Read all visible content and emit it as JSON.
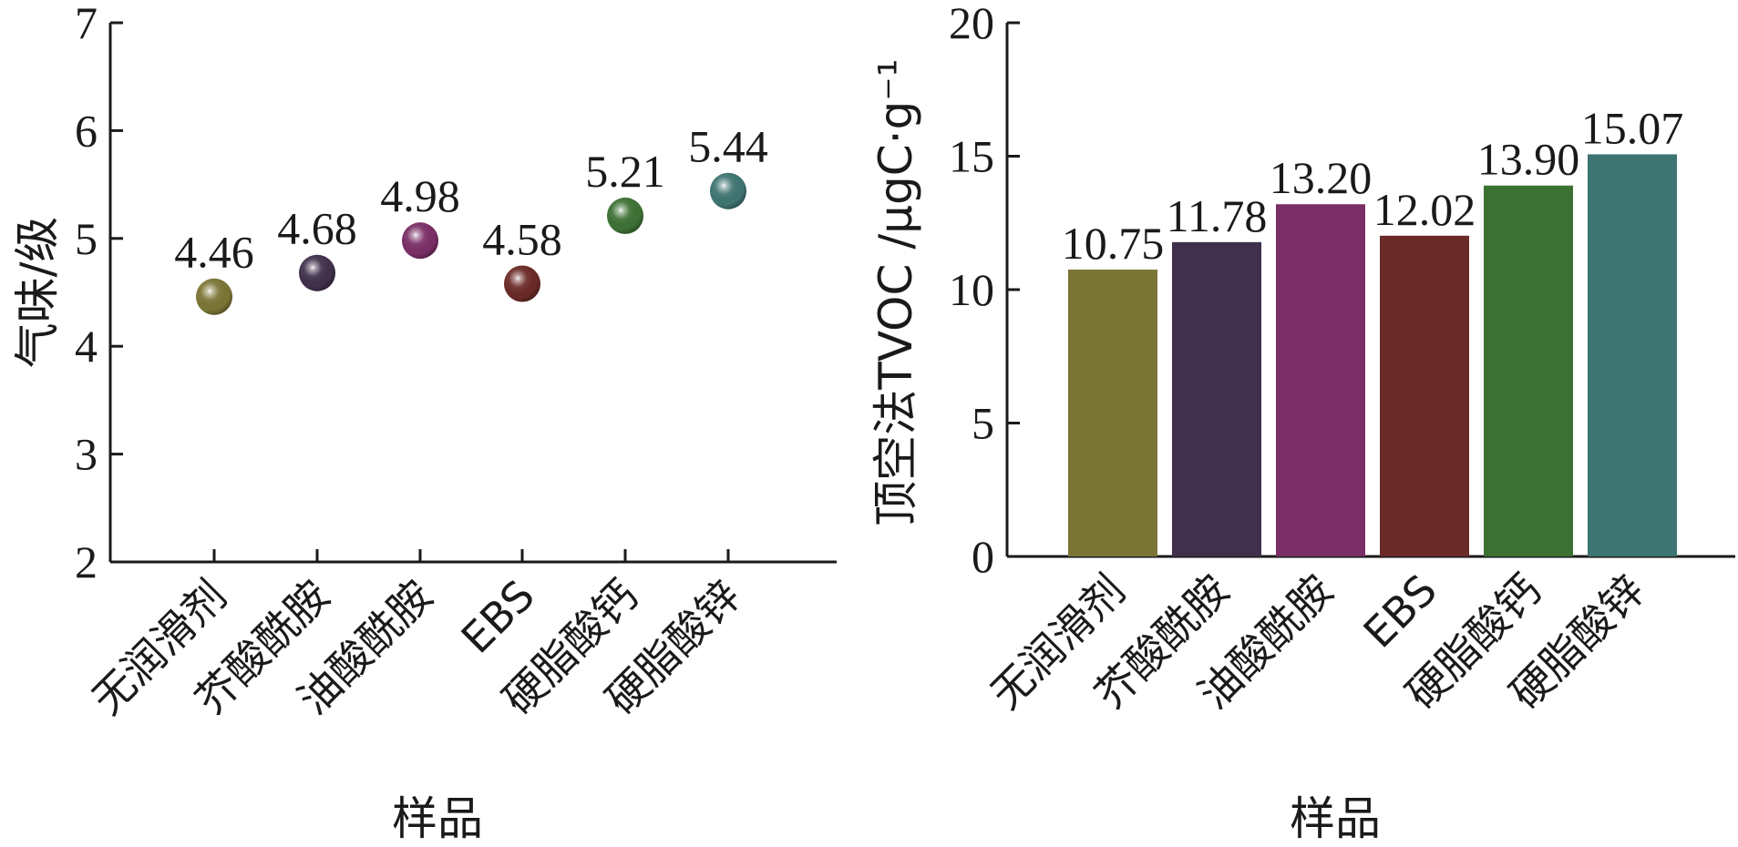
{
  "colors": {
    "axis": "#1a1a1a",
    "series": [
      "#7b7535",
      "#40304b",
      "#7a2e66",
      "#6a2a27",
      "#3d7134",
      "#3e7471"
    ]
  },
  "chart_data": [
    {
      "type": "scatter",
      "title": "",
      "xlabel": "样品",
      "ylabel": "气味/级",
      "categories": [
        "无润滑剂",
        "芥酸酰胺",
        "油酸酰胺",
        "EBS",
        "硬脂酸钙",
        "硬脂酸锌"
      ],
      "values": [
        4.46,
        4.68,
        4.98,
        4.58,
        5.21,
        5.44
      ],
      "value_labels": [
        "4.46",
        "4.68",
        "4.98",
        "4.58",
        "5.21",
        "5.44"
      ],
      "ylim": [
        2,
        7
      ],
      "yticks": [
        "2",
        "3",
        "4",
        "5",
        "6",
        "7"
      ],
      "grid": false,
      "marker": "sphere"
    },
    {
      "type": "bar",
      "title": "",
      "xlabel": "样品",
      "ylabel": "顶空法TVOC /μgC·g⁻¹",
      "categories": [
        "无润滑剂",
        "芥酸酰胺",
        "油酸酰胺",
        "EBS",
        "硬脂酸钙",
        "硬脂酸锌"
      ],
      "values": [
        10.75,
        11.78,
        13.2,
        12.02,
        13.9,
        15.07
      ],
      "value_labels": [
        "10.75",
        "11.78",
        "13.20",
        "12.02",
        "13.90",
        "15.07"
      ],
      "ylim": [
        0,
        20
      ],
      "yticks": [
        "0",
        "5",
        "10",
        "15",
        "20"
      ],
      "grid": false
    }
  ]
}
